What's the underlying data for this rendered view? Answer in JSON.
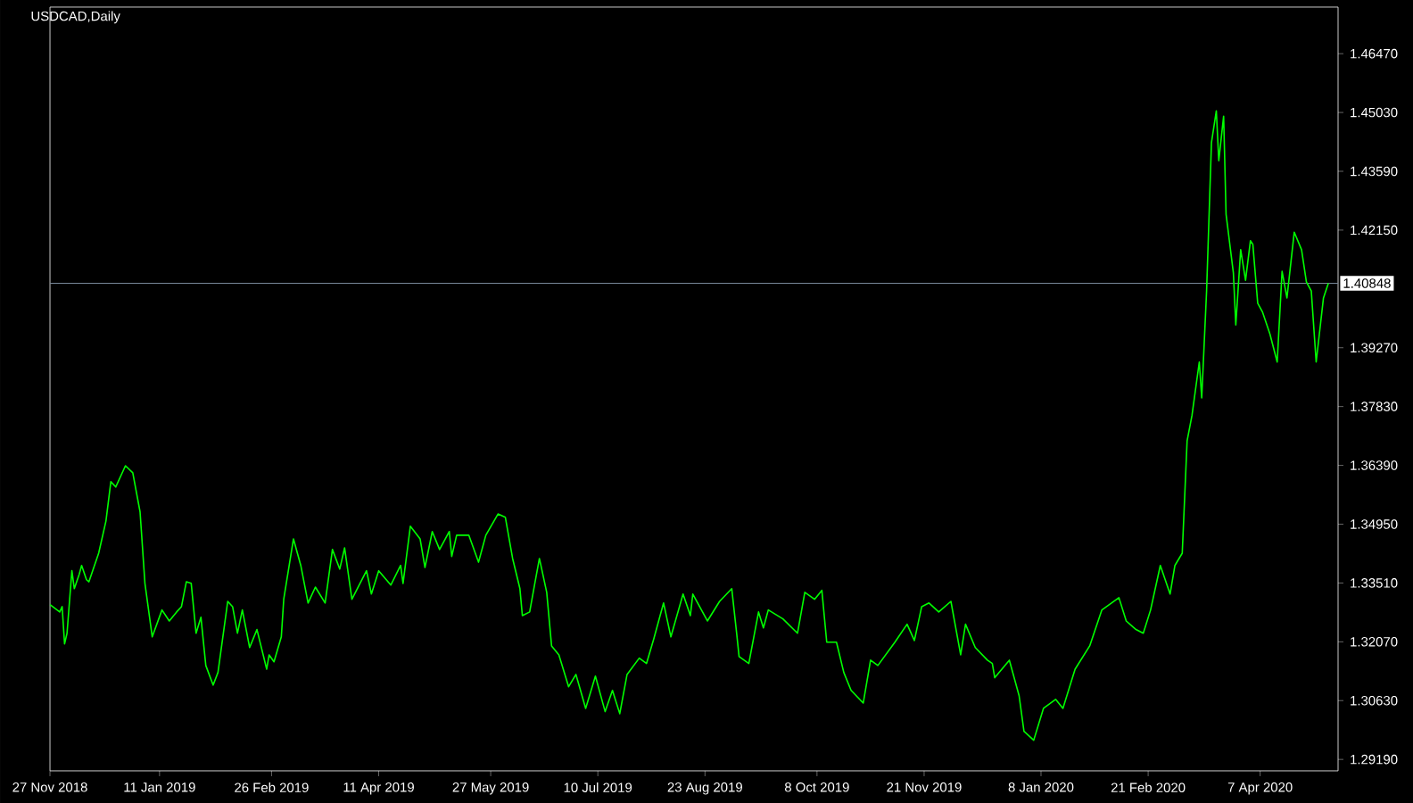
{
  "chart_data": {
    "type": "line",
    "title": "USDCAD,Daily",
    "color": "#00ff00",
    "x": [
      "2018-11-27",
      "2018-12-01",
      "2018-12-02",
      "2018-12-03",
      "2018-12-04",
      "2018-12-06",
      "2018-12-07",
      "2018-12-09",
      "2018-12-10",
      "2018-12-12",
      "2018-12-13",
      "2018-12-17",
      "2018-12-20",
      "2018-12-22",
      "2018-12-24",
      "2018-12-28",
      "2018-12-31",
      "2019-01-03",
      "2019-01-05",
      "2019-01-08",
      "2019-01-12",
      "2019-01-15",
      "2019-01-18",
      "2019-01-20",
      "2019-01-22",
      "2019-01-24",
      "2019-01-26",
      "2019-01-28",
      "2019-01-30",
      "2019-02-02",
      "2019-02-04",
      "2019-02-08",
      "2019-02-10",
      "2019-02-12",
      "2019-02-14",
      "2019-02-17",
      "2019-02-20",
      "2019-02-24",
      "2019-02-25",
      "2019-02-27",
      "2019-03-02",
      "2019-03-03",
      "2019-03-07",
      "2019-03-10",
      "2019-03-13",
      "2019-03-16",
      "2019-03-20",
      "2019-03-23",
      "2019-03-26",
      "2019-03-28",
      "2019-03-31",
      "2019-04-06",
      "2019-04-08",
      "2019-04-11",
      "2019-04-16",
      "2019-04-20",
      "2019-04-21",
      "2019-04-24",
      "2019-04-28",
      "2019-04-30",
      "2019-05-03",
      "2019-05-06",
      "2019-05-10",
      "2019-05-11",
      "2019-05-13",
      "2019-05-18",
      "2019-05-22",
      "2019-05-25",
      "2019-05-30",
      "2019-06-02",
      "2019-06-05",
      "2019-06-08",
      "2019-06-09",
      "2019-06-12",
      "2019-06-14",
      "2019-06-16",
      "2019-06-19",
      "2019-06-21",
      "2019-06-24",
      "2019-06-28",
      "2019-07-01",
      "2019-07-05",
      "2019-07-09",
      "2019-07-13",
      "2019-07-16",
      "2019-07-19",
      "2019-07-22",
      "2019-07-27",
      "2019-07-30",
      "2019-08-02",
      "2019-08-06",
      "2019-08-09",
      "2019-08-14",
      "2019-08-17",
      "2019-08-18",
      "2019-08-24",
      "2019-08-29",
      "2019-09-03",
      "2019-09-05",
      "2019-09-06",
      "2019-09-10",
      "2019-09-14",
      "2019-09-16",
      "2019-09-18",
      "2019-09-24",
      "2019-09-30",
      "2019-10-03",
      "2019-10-07",
      "2019-10-10",
      "2019-10-12",
      "2019-10-16",
      "2019-10-19",
      "2019-10-22",
      "2019-10-27",
      "2019-10-30",
      "2019-11-02",
      "2019-11-09",
      "2019-11-14",
      "2019-11-17",
      "2019-11-20",
      "2019-11-23",
      "2019-11-27",
      "2019-12-02",
      "2019-12-06",
      "2019-12-08",
      "2019-12-12",
      "2019-12-17",
      "2019-12-19",
      "2019-12-20",
      "2019-12-26",
      "2019-12-30",
      "2020-01-01",
      "2020-01-05",
      "2020-01-09",
      "2020-01-14",
      "2020-01-17",
      "2020-01-22",
      "2020-01-28",
      "2020-02-02",
      "2020-02-09",
      "2020-02-12",
      "2020-02-16",
      "2020-02-19",
      "2020-02-22",
      "2020-02-26",
      "2020-03-01",
      "2020-03-03",
      "2020-03-06",
      "2020-03-08",
      "2020-03-10",
      "2020-03-13",
      "2020-03-14",
      "2020-03-16",
      "2020-03-18",
      "2020-03-20",
      "2020-03-21",
      "2020-03-23",
      "2020-03-24",
      "2020-03-27",
      "2020-03-28",
      "2020-03-30",
      "2020-04-01",
      "2020-04-03",
      "2020-04-04",
      "2020-04-06",
      "2020-04-08",
      "2020-04-11",
      "2020-04-14",
      "2020-04-16",
      "2020-04-18",
      "2020-04-21",
      "2020-04-24",
      "2020-04-26",
      "2020-04-28",
      "2020-04-30",
      "2020-05-03",
      "2020-05-05"
    ],
    "values": [
      1.3298,
      1.328,
      1.3293,
      1.3202,
      1.3228,
      1.3381,
      1.3337,
      1.3372,
      1.3394,
      1.3359,
      1.3354,
      1.3424,
      1.3503,
      1.3599,
      1.3586,
      1.3638,
      1.3621,
      1.3525,
      1.335,
      1.3219,
      1.3285,
      1.3258,
      1.328,
      1.3293,
      1.3354,
      1.335,
      1.3228,
      1.3267,
      1.3149,
      1.3101,
      1.3132,
      1.3306,
      1.3293,
      1.3228,
      1.3285,
      1.3193,
      1.3237,
      1.314,
      1.3175,
      1.3158,
      1.3219,
      1.3311,
      1.3459,
      1.3394,
      1.3302,
      1.3341,
      1.3302,
      1.3433,
      1.3385,
      1.3437,
      1.3311,
      1.3381,
      1.3324,
      1.3381,
      1.3346,
      1.3394,
      1.335,
      1.349,
      1.3459,
      1.3389,
      1.3477,
      1.3433,
      1.3477,
      1.3416,
      1.3468,
      1.3468,
      1.3402,
      1.3468,
      1.352,
      1.3512,
      1.3411,
      1.3337,
      1.3271,
      1.328,
      1.3346,
      1.3411,
      1.3328,
      1.3197,
      1.3175,
      1.3097,
      1.3127,
      1.3044,
      1.3123,
      1.3036,
      1.3088,
      1.3031,
      1.3127,
      1.3167,
      1.3154,
      1.3215,
      1.3302,
      1.3219,
      1.3324,
      1.3271,
      1.3324,
      1.3258,
      1.3306,
      1.3337,
      1.3228,
      1.3171,
      1.3154,
      1.328,
      1.3241,
      1.3285,
      1.3263,
      1.3228,
      1.3328,
      1.3311,
      1.3333,
      1.3206,
      1.3206,
      1.3132,
      1.3088,
      1.3057,
      1.3162,
      1.3149,
      1.3206,
      1.325,
      1.321,
      1.3293,
      1.3302,
      1.328,
      1.3306,
      1.3175,
      1.325,
      1.3193,
      1.3162,
      1.3154,
      1.3119,
      1.3162,
      1.3075,
      1.2988,
      1.2966,
      1.3044,
      1.3066,
      1.3044,
      1.314,
      1.3197,
      1.3285,
      1.3315,
      1.3258,
      1.3237,
      1.3228,
      1.3285,
      1.3394,
      1.3324,
      1.3394,
      1.3424,
      1.3699,
      1.3761,
      1.3892,
      1.3804,
      1.4066,
      1.4429,
      1.4507,
      1.4385,
      1.4494,
      1.4254,
      1.411,
      1.3983,
      1.4167,
      1.4092,
      1.4189,
      1.418,
      1.4036,
      1.4014,
      1.3961,
      1.3892,
      1.4114,
      1.4049,
      1.421,
      1.4167,
      1.4088,
      1.4066,
      1.3892,
      1.4049,
      1.4085
    ],
    "xlim": [
      "2018-11-27",
      "2020-05-09"
    ],
    "ylim": [
      1.2891,
      1.4761
    ],
    "xticks": [
      {
        "value": "2018-11-27",
        "label": "27 Nov 2018"
      },
      {
        "value": "2019-01-11",
        "label": "11 Jan 2019"
      },
      {
        "value": "2019-02-26",
        "label": "26 Feb 2019"
      },
      {
        "value": "2019-04-11",
        "label": "11 Apr 2019"
      },
      {
        "value": "2019-05-27",
        "label": "27 May 2019"
      },
      {
        "value": "2019-07-10",
        "label": "10 Jul 2019"
      },
      {
        "value": "2019-08-23",
        "label": "23 Aug 2019"
      },
      {
        "value": "2019-10-08",
        "label": "8 Oct 2019"
      },
      {
        "value": "2019-11-21",
        "label": "21 Nov 2019"
      },
      {
        "value": "2020-01-08",
        "label": "8 Jan 2020"
      },
      {
        "value": "2020-02-21",
        "label": "21 Feb 2020"
      },
      {
        "value": "2020-04-07",
        "label": "7 Apr 2020"
      }
    ],
    "yticks": [
      {
        "value": 1.2919,
        "label": "1.29190"
      },
      {
        "value": 1.3063,
        "label": "1.30630"
      },
      {
        "value": 1.3207,
        "label": "1.32070"
      },
      {
        "value": 1.3351,
        "label": "1.33510"
      },
      {
        "value": 1.3495,
        "label": "1.34950"
      },
      {
        "value": 1.3639,
        "label": "1.36390"
      },
      {
        "value": 1.3783,
        "label": "1.37830"
      },
      {
        "value": 1.3927,
        "label": "1.39270"
      },
      {
        "value": 1.4215,
        "label": "1.42150"
      },
      {
        "value": 1.4359,
        "label": "1.43590"
      },
      {
        "value": 1.4503,
        "label": "1.45030"
      },
      {
        "value": 1.4647,
        "label": "1.46470"
      }
    ],
    "ref_lines": [
      {
        "axis": "y",
        "value": 1.40848,
        "label": "1.40848",
        "color": "#778899"
      }
    ]
  }
}
